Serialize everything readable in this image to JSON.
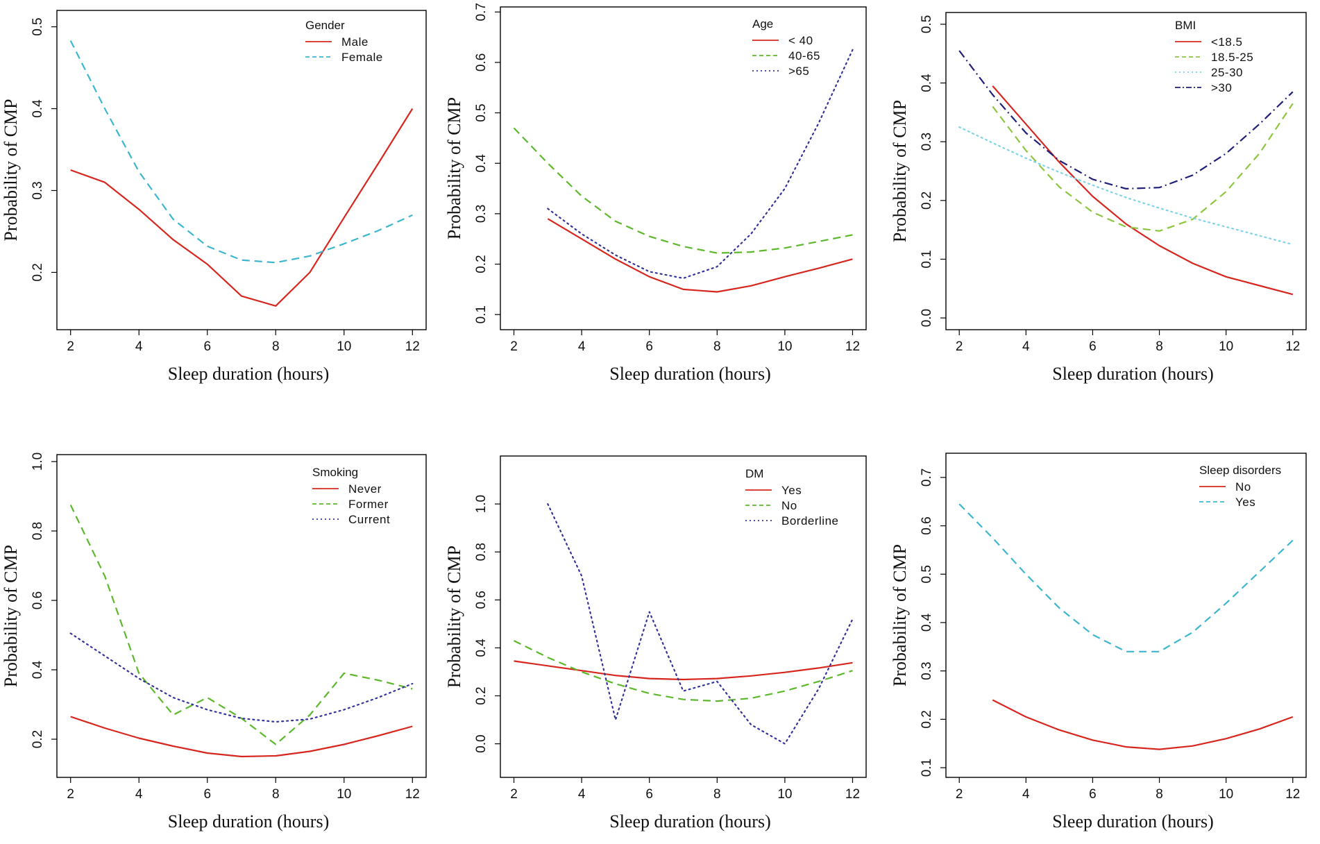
{
  "chart_data": [
    {
      "type": "line",
      "title": "",
      "xlabel": "Sleep duration (hours)",
      "ylabel": "Probability of CMP",
      "xlim": [
        1.6,
        12.4
      ],
      "ylim": [
        0.13,
        0.52
      ],
      "xticks": [
        2,
        4,
        6,
        8,
        10,
        12
      ],
      "yticks": [
        0.2,
        0.3,
        0.4,
        0.5
      ],
      "legend_title": "Gender",
      "legend_position": "top-right",
      "series": [
        {
          "name": "Male",
          "color": "#d7261e",
          "dash": "solid",
          "x": [
            2,
            3,
            4,
            5,
            6,
            7,
            8,
            9,
            10,
            11,
            12
          ],
          "y": [
            0.325,
            0.31,
            0.277,
            0.24,
            0.21,
            0.171,
            0.159,
            0.2,
            0.267,
            0.333,
            0.4
          ]
        },
        {
          "name": "Female",
          "color": "#3cb6d0",
          "dash": "dashed",
          "x": [
            2,
            3,
            4,
            5,
            6,
            7,
            8,
            9,
            10,
            11,
            12
          ],
          "y": [
            0.483,
            0.4,
            0.323,
            0.265,
            0.232,
            0.215,
            0.212,
            0.22,
            0.235,
            0.251,
            0.27
          ]
        }
      ]
    },
    {
      "type": "line",
      "title": "",
      "xlabel": "Sleep duration (hours)",
      "ylabel": "Probability of CMP",
      "xlim": [
        1.6,
        12.4
      ],
      "ylim": [
        0.07,
        0.71
      ],
      "xticks": [
        2,
        4,
        6,
        8,
        10,
        12
      ],
      "yticks": [
        0.1,
        0.2,
        0.3,
        0.4,
        0.5,
        0.6,
        0.7
      ],
      "legend_title": "Age",
      "legend_position": "top-right",
      "series": [
        {
          "name": "< 40",
          "color": "#d7261e",
          "dash": "solid",
          "x": [
            3,
            4,
            5,
            6,
            7,
            8,
            9,
            10,
            11,
            12
          ],
          "y": [
            0.29,
            0.25,
            0.21,
            0.175,
            0.15,
            0.145,
            0.157,
            0.175,
            0.192,
            0.21
          ]
        },
        {
          "name": "40-65",
          "color": "#5cb82b",
          "dash": "dashed",
          "x": [
            2,
            3,
            4,
            5,
            6,
            7,
            8,
            9,
            10,
            11,
            12
          ],
          "y": [
            0.47,
            0.4,
            0.335,
            0.285,
            0.255,
            0.235,
            0.222,
            0.224,
            0.232,
            0.245,
            0.258
          ]
        },
        {
          "name": ">65",
          "color": "#333399",
          "dash": "dotted",
          "x": [
            3,
            4,
            5,
            6,
            7,
            8,
            9,
            10,
            11,
            12
          ],
          "y": [
            0.31,
            0.26,
            0.218,
            0.185,
            0.172,
            0.195,
            0.26,
            0.35,
            0.48,
            0.625
          ]
        }
      ]
    },
    {
      "type": "line",
      "title": "",
      "xlabel": "Sleep duration (hours)",
      "ylabel": "Probability of CMP",
      "xlim": [
        1.6,
        12.4
      ],
      "ylim": [
        -0.02,
        0.52
      ],
      "xticks": [
        2,
        4,
        6,
        8,
        10,
        12
      ],
      "yticks": [
        0.0,
        0.1,
        0.2,
        0.3,
        0.4,
        0.5
      ],
      "legend_title": "BMI",
      "legend_position": "top-right",
      "series": [
        {
          "name": "<18.5",
          "color": "#d7261e",
          "dash": "solid",
          "x": [
            3,
            4,
            5,
            6,
            7,
            8,
            9,
            10,
            11,
            12
          ],
          "y": [
            0.395,
            0.33,
            0.265,
            0.207,
            0.16,
            0.123,
            0.093,
            0.07,
            0.055,
            0.04
          ]
        },
        {
          "name": "18.5-25",
          "color": "#8cc63f",
          "dash": "dashed",
          "x": [
            3,
            4,
            5,
            6,
            7,
            8,
            9,
            10,
            11,
            12
          ],
          "y": [
            0.36,
            0.285,
            0.223,
            0.18,
            0.155,
            0.148,
            0.168,
            0.215,
            0.28,
            0.365
          ]
        },
        {
          "name": "25-30",
          "color": "#7fd3e6",
          "dash": "dotted",
          "x": [
            2,
            3,
            4,
            5,
            6,
            7,
            8,
            9,
            10,
            11,
            12
          ],
          "y": [
            0.325,
            0.298,
            0.272,
            0.248,
            0.226,
            0.205,
            0.187,
            0.17,
            0.155,
            0.14,
            0.125
          ]
        },
        {
          "name": ">30",
          "color": "#1f1f7a",
          "dash": "dashdot",
          "x": [
            2,
            3,
            4,
            5,
            6,
            7,
            8,
            9,
            10,
            11,
            12
          ],
          "y": [
            0.455,
            0.38,
            0.315,
            0.268,
            0.236,
            0.22,
            0.222,
            0.243,
            0.28,
            0.33,
            0.385
          ]
        }
      ]
    },
    {
      "type": "line",
      "title": "",
      "xlabel": "Sleep duration (hours)",
      "ylabel": "Probability of CMP",
      "xlim": [
        1.6,
        12.4
      ],
      "ylim": [
        0.09,
        1.02
      ],
      "xticks": [
        2,
        4,
        6,
        8,
        10,
        12
      ],
      "yticks": [
        0.2,
        0.4,
        0.6,
        0.8,
        1.0
      ],
      "legend_title": "Smoking",
      "legend_position": "top-right",
      "series": [
        {
          "name": "Never",
          "color": "#d7261e",
          "dash": "solid",
          "x": [
            2,
            3,
            4,
            5,
            6,
            7,
            8,
            9,
            10,
            11,
            12
          ],
          "y": [
            0.265,
            0.232,
            0.203,
            0.18,
            0.16,
            0.15,
            0.152,
            0.165,
            0.185,
            0.21,
            0.237
          ]
        },
        {
          "name": "Former",
          "color": "#5cb82b",
          "dash": "dashed",
          "x": [
            2,
            3,
            4,
            5,
            6,
            7,
            8,
            9,
            10,
            11,
            12
          ],
          "y": [
            0.875,
            0.67,
            0.39,
            0.27,
            0.32,
            0.26,
            0.185,
            0.27,
            0.39,
            0.37,
            0.345
          ]
        },
        {
          "name": "Current",
          "color": "#333399",
          "dash": "dotted",
          "x": [
            2,
            3,
            4,
            5,
            6,
            7,
            8,
            9,
            10,
            11,
            12
          ],
          "y": [
            0.505,
            0.44,
            0.375,
            0.32,
            0.285,
            0.26,
            0.25,
            0.258,
            0.285,
            0.32,
            0.36
          ]
        }
      ]
    },
    {
      "type": "line",
      "title": "",
      "xlabel": "Sleep duration (hours)",
      "ylabel": "Probability of CMP",
      "xlim": [
        1.6,
        12.4
      ],
      "ylim": [
        -0.14,
        1.2
      ],
      "xticks": [
        2,
        4,
        6,
        8,
        10,
        12
      ],
      "yticks": [
        0.0,
        0.2,
        0.4,
        0.6,
        0.8,
        1.0
      ],
      "legend_title": "DM",
      "legend_position": "top-right",
      "series": [
        {
          "name": "Yes",
          "color": "#d7261e",
          "dash": "solid",
          "x": [
            2,
            3,
            4,
            5,
            6,
            7,
            8,
            9,
            10,
            11,
            12
          ],
          "y": [
            0.345,
            0.325,
            0.305,
            0.285,
            0.272,
            0.268,
            0.272,
            0.283,
            0.298,
            0.316,
            0.338
          ]
        },
        {
          "name": "No",
          "color": "#5cb82b",
          "dash": "dashed",
          "x": [
            2,
            3,
            4,
            5,
            6,
            7,
            8,
            9,
            10,
            11,
            12
          ],
          "y": [
            0.43,
            0.36,
            0.3,
            0.25,
            0.21,
            0.185,
            0.178,
            0.19,
            0.22,
            0.26,
            0.305
          ]
        },
        {
          "name": "Borderline",
          "color": "#333399",
          "dash": "dotted",
          "x": [
            3,
            4,
            5,
            6,
            7,
            8,
            9,
            10,
            11,
            12
          ],
          "y": [
            1.0,
            0.7,
            0.1,
            0.55,
            0.22,
            0.26,
            0.08,
            0.0,
            0.23,
            0.52
          ]
        }
      ]
    },
    {
      "type": "line",
      "title": "",
      "xlabel": "Sleep duration (hours)",
      "ylabel": "Probability of CMP",
      "xlim": [
        1.6,
        12.4
      ],
      "ylim": [
        0.08,
        0.75
      ],
      "xticks": [
        2,
        4,
        6,
        8,
        10,
        12
      ],
      "yticks": [
        0.1,
        0.2,
        0.3,
        0.4,
        0.5,
        0.6,
        0.7
      ],
      "legend_title": "Sleep disorders",
      "legend_position": "top-right",
      "series": [
        {
          "name": "No",
          "color": "#d7261e",
          "dash": "solid",
          "x": [
            3,
            4,
            5,
            6,
            7,
            8,
            9,
            10,
            11,
            12
          ],
          "y": [
            0.24,
            0.205,
            0.178,
            0.157,
            0.143,
            0.138,
            0.145,
            0.16,
            0.18,
            0.205
          ]
        },
        {
          "name": "Yes",
          "color": "#3cb6d0",
          "dash": "dashed",
          "x": [
            2,
            3,
            4,
            5,
            6,
            7,
            8,
            9,
            10,
            11,
            12
          ],
          "y": [
            0.645,
            0.575,
            0.5,
            0.43,
            0.375,
            0.34,
            0.34,
            0.38,
            0.44,
            0.505,
            0.57
          ]
        }
      ]
    }
  ]
}
